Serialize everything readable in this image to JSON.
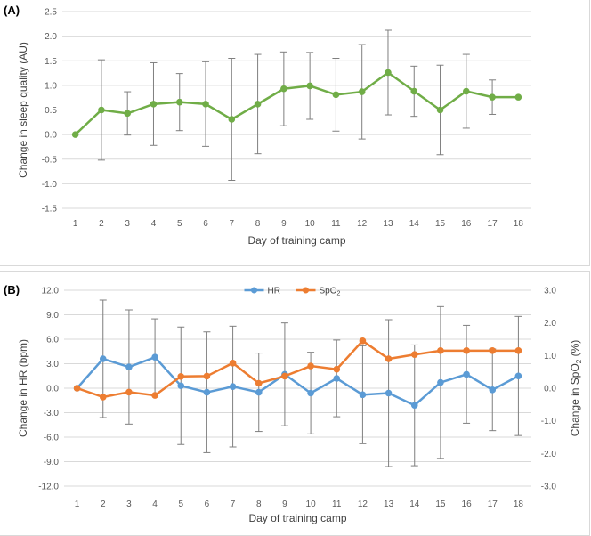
{
  "chart_data": [
    {
      "panel_label": "(A)",
      "type": "line",
      "xlabel": "Day of training camp",
      "ylabel": "Change in sleep quality (AU)",
      "x": [
        1,
        2,
        3,
        4,
        5,
        6,
        7,
        8,
        9,
        10,
        11,
        12,
        13,
        14,
        15,
        16,
        17,
        18
      ],
      "ylim": [
        -1.5,
        2.5
      ],
      "yticks": [
        "-1.5",
        "-1.0",
        "-0.5",
        "0.0",
        "0.5",
        "1.0",
        "1.5",
        "2.0",
        "2.5"
      ],
      "grid": true,
      "series": [
        {
          "color": "#70ad47",
          "values": [
            0.0,
            0.5,
            0.43,
            0.62,
            0.66,
            0.62,
            0.31,
            0.62,
            0.93,
            0.99,
            0.81,
            0.87,
            1.26,
            0.88,
            0.5,
            0.88,
            0.76,
            0.76
          ],
          "errors": [
            0,
            1.02,
            0.44,
            0.84,
            0.58,
            0.86,
            1.24,
            1.01,
            0.75,
            0.68,
            0.74,
            0.96,
            0.86,
            0.51,
            0.91,
            0.75,
            0.35,
            0
          ]
        }
      ]
    },
    {
      "panel_label": "(B)",
      "type": "line",
      "xlabel": "Day of training camp",
      "ylabel": "Change in HR (bpm)",
      "y2label": "Change in SpO",
      "y2label_sub": "2",
      "y2label_suffix": " (%)",
      "x": [
        1,
        2,
        3,
        4,
        5,
        6,
        7,
        8,
        9,
        10,
        11,
        12,
        13,
        14,
        15,
        16,
        17,
        18
      ],
      "ylim": [
        -12,
        12
      ],
      "yticks": [
        "-12.0",
        "-9.0",
        "-6.0",
        "-3.0",
        "0.0",
        "3.0",
        "6.0",
        "9.0",
        "12.0"
      ],
      "y2lim": [
        -3,
        3
      ],
      "y2ticks": [
        "-3.0",
        "-2.0",
        "-1.0",
        "0.0",
        "1.0",
        "2.0",
        "3.0"
      ],
      "grid": true,
      "legend": "top-center",
      "series": [
        {
          "name": "HR",
          "color": "#5b9bd5",
          "axis": "left",
          "values": [
            0.0,
            3.6,
            2.6,
            3.8,
            0.3,
            -0.5,
            0.2,
            -0.5,
            1.7,
            -0.6,
            1.2,
            -0.8,
            -0.6,
            -2.1,
            0.7,
            1.7,
            -0.2,
            1.5
          ],
          "errors": [
            0,
            7.2,
            7.0,
            4.7,
            7.2,
            7.4,
            7.4,
            4.8,
            6.3,
            5.0,
            4.7,
            6.0,
            9.0,
            7.4,
            9.3,
            6.0,
            5.0,
            7.3
          ]
        },
        {
          "name": "SpO",
          "name_sub": "2",
          "color": "#ed7d31",
          "axis": "right",
          "values": [
            0.0,
            -0.27,
            -0.12,
            -0.22,
            0.36,
            0.37,
            0.77,
            0.15,
            0.37,
            0.68,
            0.58,
            1.45,
            0.9,
            1.03,
            1.15,
            1.15,
            1.15,
            1.15
          ],
          "errors": [
            0,
            0,
            0,
            0,
            0,
            0,
            0,
            0,
            0,
            0,
            0,
            0,
            0,
            0,
            0,
            0,
            0,
            0
          ]
        }
      ]
    }
  ]
}
